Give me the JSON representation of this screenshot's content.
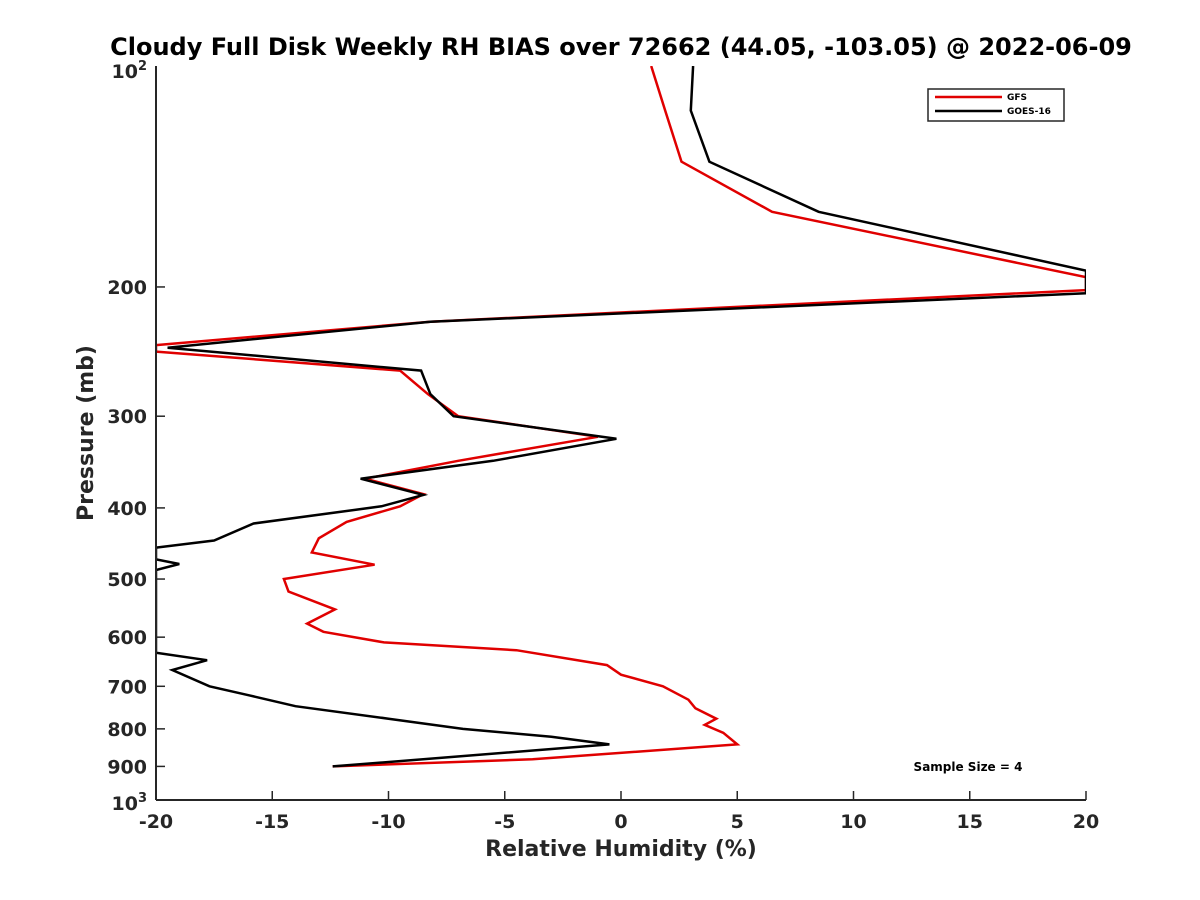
{
  "chart_data": {
    "type": "line",
    "title": "Cloudy Full Disk Weekly RH BIAS over 72662 (44.05, -103.05) @ 2022-06-09",
    "xlabel": "Relative Humidity (%)",
    "ylabel": "Pressure (mb)",
    "xlim": [
      -20,
      20
    ],
    "ylim": [
      100,
      1000
    ],
    "y_scale": "log",
    "y_reversed": true,
    "grid": false,
    "legend_position": "top-right",
    "x_ticks": [
      -20,
      -15,
      -10,
      -5,
      0,
      5,
      10,
      15,
      20
    ],
    "x_tick_labels": [
      "-20",
      "-15",
      "-10",
      "-5",
      "0",
      "5",
      "10",
      "15",
      "20"
    ],
    "y_ticks": [
      200,
      300,
      400,
      500,
      600,
      700,
      800,
      900
    ],
    "y_tick_labels": [
      "200",
      "300",
      "400",
      "500",
      "600",
      "700",
      "800",
      "900"
    ],
    "y_tick_top_base": "10",
    "y_tick_top_exp": "2",
    "y_tick_bottom_base": "10",
    "y_tick_bottom_exp": "3",
    "series": [
      {
        "name": "GFS",
        "color": "#e00000",
        "points": [
          [
            1.3,
            100
          ],
          [
            1.9,
            115
          ],
          [
            2.6,
            135
          ],
          [
            6.5,
            158
          ],
          [
            20,
            194
          ],
          [
            20,
            202
          ],
          [
            -8.2,
            223
          ],
          [
            -20,
            240
          ],
          [
            -20,
            245
          ],
          [
            -9.5,
            260
          ],
          [
            -8.3,
            280
          ],
          [
            -7.0,
            300
          ],
          [
            -1.0,
            320
          ],
          [
            -7.0,
            345
          ],
          [
            -11.0,
            365
          ],
          [
            -8.5,
            383
          ],
          [
            -9.5,
            398
          ],
          [
            -11.8,
            418
          ],
          [
            -13.0,
            440
          ],
          [
            -13.3,
            460
          ],
          [
            -10.6,
            478
          ],
          [
            -14.5,
            500
          ],
          [
            -14.3,
            520
          ],
          [
            -12.3,
            550
          ],
          [
            -13.5,
            575
          ],
          [
            -12.8,
            590
          ],
          [
            -10.2,
            610
          ],
          [
            -4.5,
            625
          ],
          [
            -0.6,
            655
          ],
          [
            0,
            675
          ],
          [
            1.8,
            700
          ],
          [
            2.9,
            730
          ],
          [
            3.2,
            750
          ],
          [
            4.1,
            775
          ],
          [
            3.6,
            790
          ],
          [
            4.4,
            810
          ],
          [
            5.0,
            840
          ],
          [
            -3.8,
            880
          ],
          [
            -12.4,
            900
          ]
        ]
      },
      {
        "name": "GOES-16",
        "color": "#000000",
        "points": [
          [
            3.1,
            100
          ],
          [
            3.0,
            115
          ],
          [
            3.8,
            135
          ],
          [
            8.5,
            158
          ],
          [
            20,
            190
          ],
          [
            20,
            204
          ],
          [
            -8.2,
            223
          ],
          [
            -19.5,
            242
          ],
          [
            -8.6,
            260
          ],
          [
            -8.2,
            280
          ],
          [
            -7.2,
            300
          ],
          [
            -0.2,
            322
          ],
          [
            -5.5,
            345
          ],
          [
            -11.2,
            365
          ],
          [
            -8.5,
            384
          ],
          [
            -10.3,
            398
          ],
          [
            -15.8,
            420
          ],
          [
            -17.5,
            443
          ],
          [
            -20,
            453
          ],
          [
            -20,
            470
          ],
          [
            -19,
            477
          ],
          [
            -20,
            486
          ],
          [
            -20,
            630
          ],
          [
            -17.8,
            645
          ],
          [
            -19.3,
            665
          ],
          [
            -17.7,
            700
          ],
          [
            -16.0,
            720
          ],
          [
            -14.0,
            745
          ],
          [
            -10.0,
            775
          ],
          [
            -6.8,
            800
          ],
          [
            -3.0,
            820
          ],
          [
            -0.5,
            840
          ],
          [
            -7.5,
            875
          ],
          [
            -12.4,
            900
          ]
        ]
      }
    ],
    "annotations": [
      "Sample Size = 4"
    ]
  }
}
